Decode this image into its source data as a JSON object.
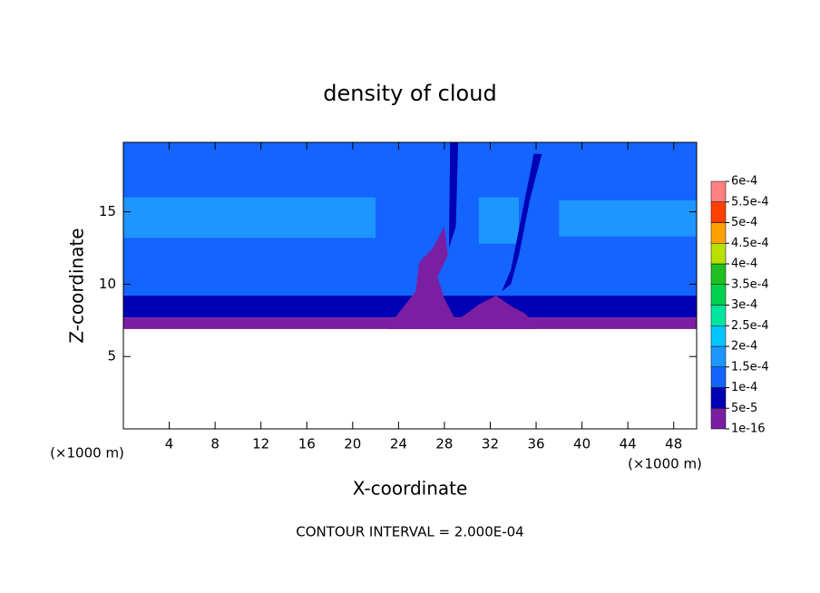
{
  "chart_data": {
    "type": "contour",
    "title": "density of cloud",
    "xlabel": "X-coordinate",
    "ylabel": "Z-coordinate",
    "unit_label": "(×1000 m)",
    "footnote": "CONTOUR INTERVAL = 2.000E-04",
    "xlim": [
      0,
      50
    ],
    "xticks": [
      4,
      8,
      12,
      16,
      20,
      24,
      28,
      32,
      36,
      40,
      44,
      48
    ],
    "ylim": [
      0,
      19.8
    ],
    "yticks": [
      5,
      10,
      15
    ],
    "colorbar": {
      "levels": [
        {
          "value": 1e-16,
          "label": "1e-16"
        },
        {
          "value": 5e-05,
          "label": "5e-5"
        },
        {
          "value": 0.0001,
          "label": "1e-4"
        },
        {
          "value": 0.00015,
          "label": "1.5e-4"
        },
        {
          "value": 0.0002,
          "label": "2e-4"
        },
        {
          "value": 0.00025,
          "label": "2.5e-4"
        },
        {
          "value": 0.0003,
          "label": "3e-4"
        },
        {
          "value": 0.00035,
          "label": "3.5e-4"
        },
        {
          "value": 0.0004,
          "label": "4e-4"
        },
        {
          "value": 0.00045,
          "label": "4.5e-4"
        },
        {
          "value": 0.0005,
          "label": "5e-4"
        },
        {
          "value": 0.00055,
          "label": "5.5e-4"
        },
        {
          "value": 0.0006,
          "label": "6e-4"
        }
      ],
      "colors": [
        "#7a1fa2",
        "#0000b4",
        "#1464ff",
        "#1e96ff",
        "#00c8ff",
        "#00e6a0",
        "#00d050",
        "#20c020",
        "#b8e000",
        "#ffa000",
        "#ff4000",
        "#ff8080"
      ]
    }
  }
}
